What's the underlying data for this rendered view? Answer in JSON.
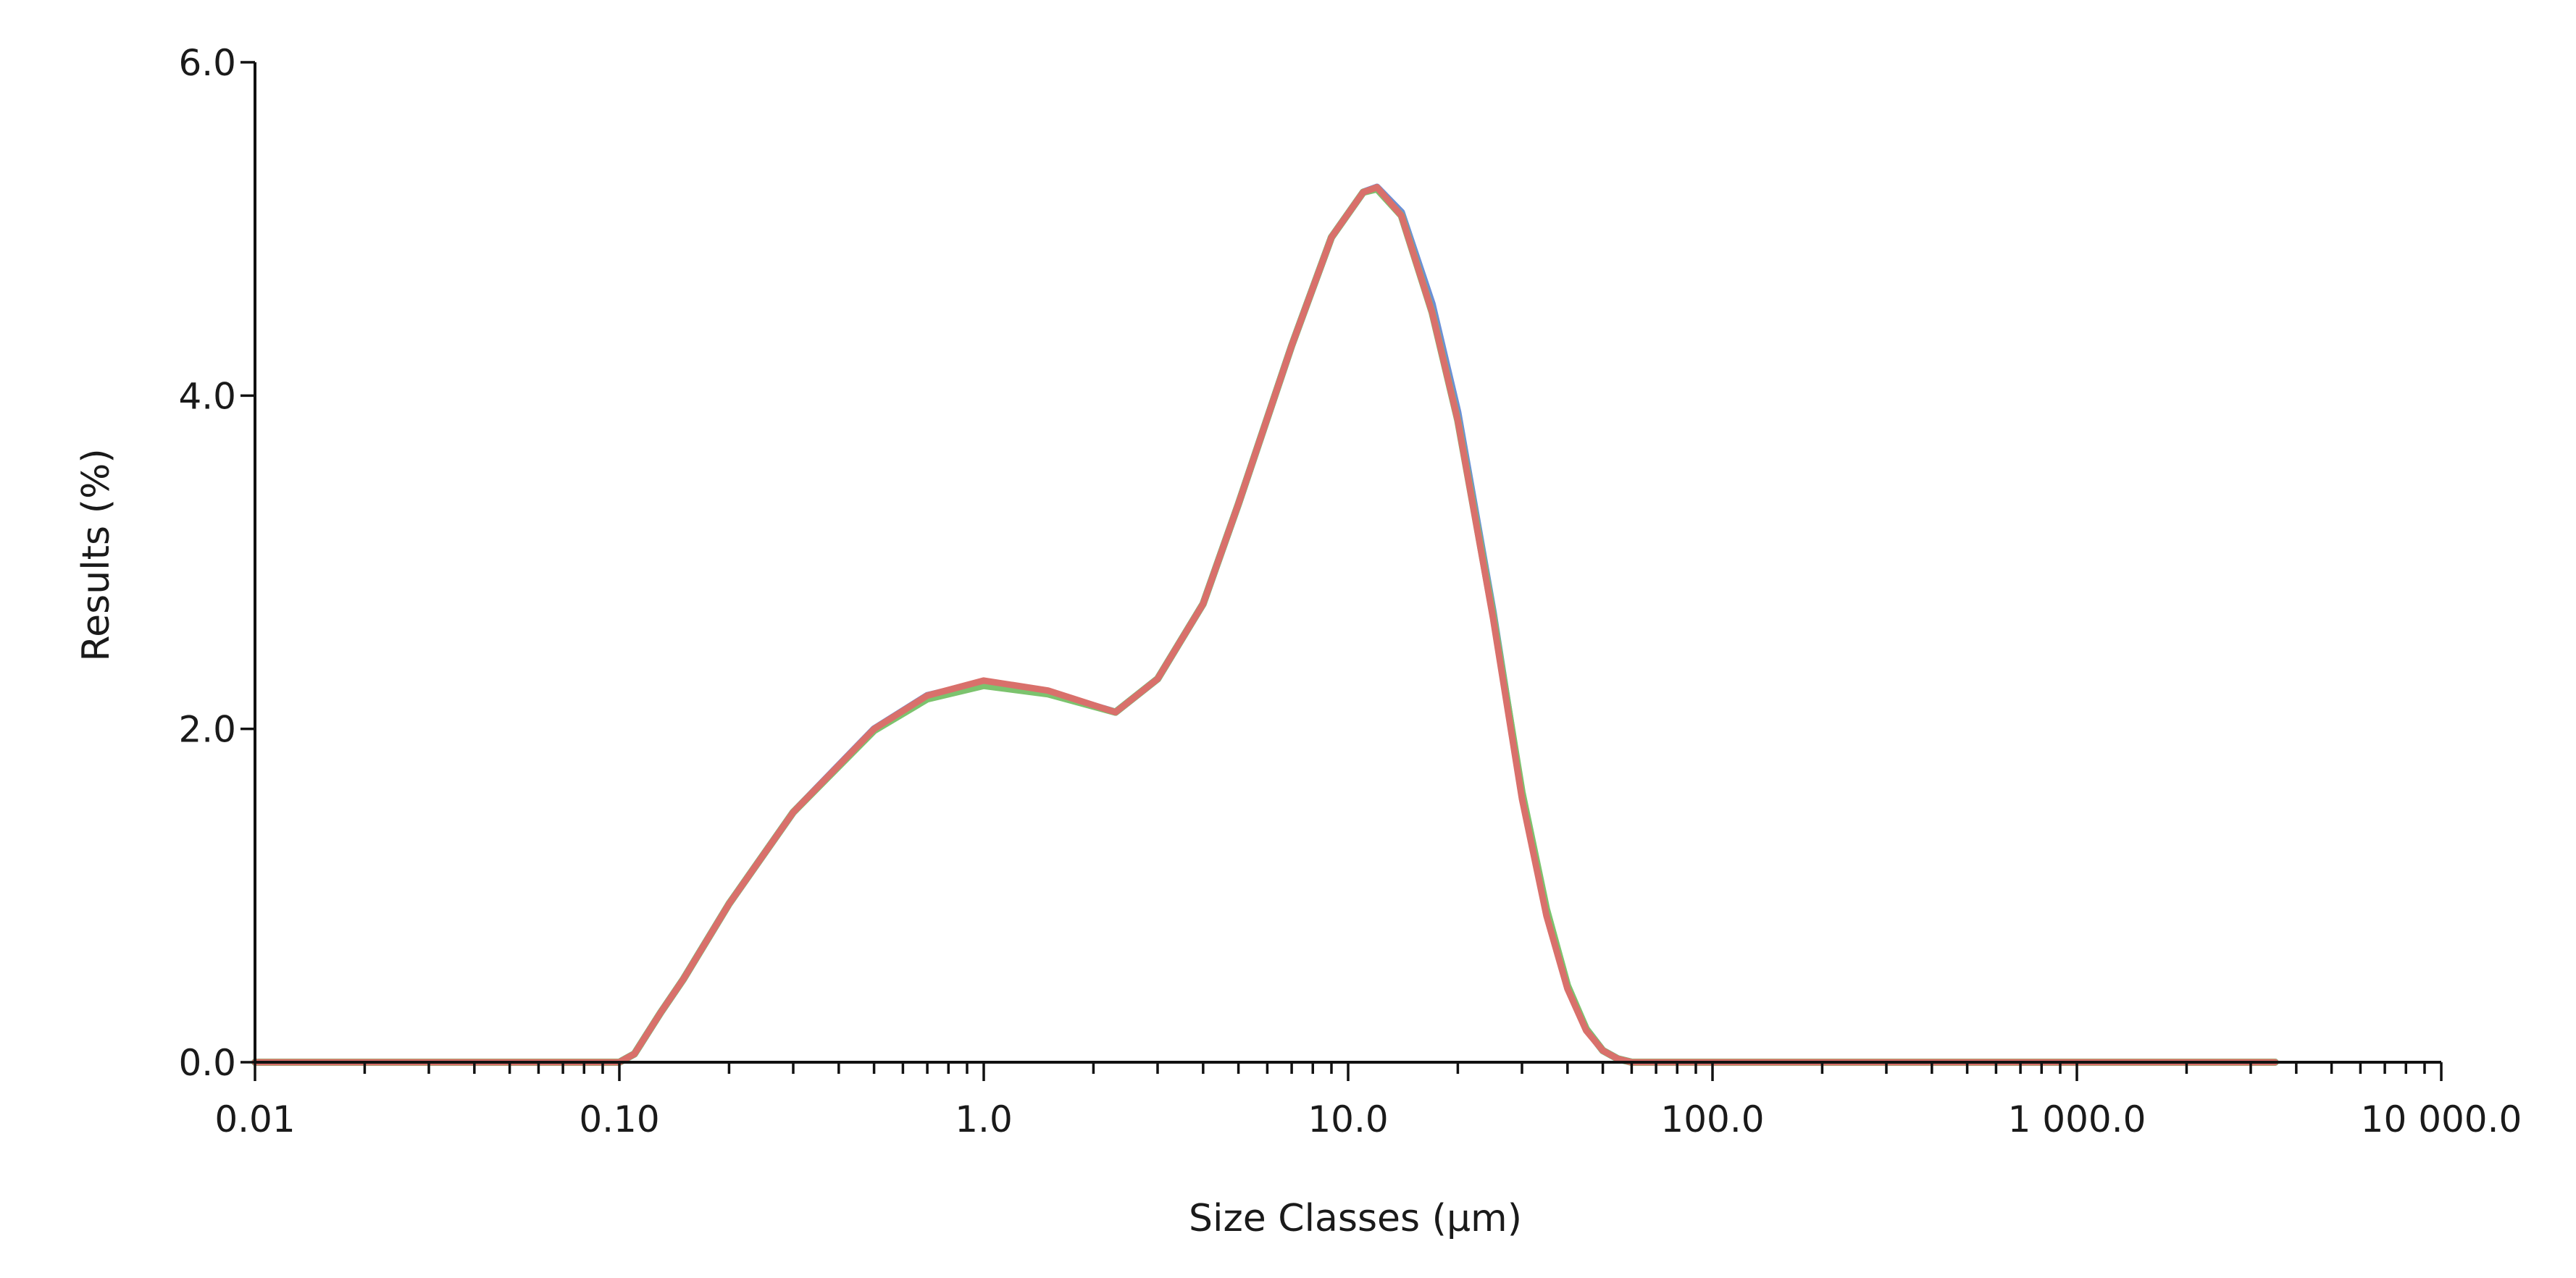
{
  "chart_data": {
    "type": "line",
    "title": "",
    "xlabel": "Size Classes (μm)",
    "ylabel": "Results (%)",
    "x_scale": "log",
    "xlim": [
      0.01,
      10000
    ],
    "ylim": [
      0,
      6
    ],
    "x_ticks": [
      0.01,
      0.1,
      1,
      10,
      100,
      1000,
      10000
    ],
    "x_tick_labels": [
      "0.01",
      "0.10",
      "1.0",
      "10.0",
      "100.0",
      "1 000.0",
      "10 000.0"
    ],
    "y_ticks": [
      0,
      2,
      4,
      6
    ],
    "y_tick_labels": [
      "0.0",
      "2.0",
      "4.0",
      "6.0"
    ],
    "grid": false,
    "legend": "none",
    "series": [
      {
        "color": "#6b8fd6",
        "x": [
          0.01,
          0.1,
          0.11,
          0.13,
          0.15,
          0.2,
          0.3,
          0.5,
          0.7,
          1.0,
          1.5,
          2.3,
          3.0,
          4.0,
          5.0,
          7.0,
          9.0,
          11.0,
          12.0,
          14.0,
          17.0,
          20.0,
          25.0,
          30.0,
          35.0,
          40.0,
          45.0,
          50.0,
          55.0,
          60.0,
          100.0,
          1000.0,
          3500.0
        ],
        "y": [
          0.0,
          0.0,
          0.05,
          0.3,
          0.5,
          0.95,
          1.5,
          2.0,
          2.2,
          2.28,
          2.22,
          2.1,
          2.3,
          2.75,
          3.35,
          4.3,
          4.95,
          5.22,
          5.25,
          5.1,
          4.55,
          3.9,
          2.7,
          1.6,
          0.9,
          0.45,
          0.2,
          0.07,
          0.02,
          0.0,
          0.0,
          0.0,
          0.0
        ]
      },
      {
        "color": "#7cc36e",
        "x": [
          0.01,
          0.1,
          0.11,
          0.13,
          0.15,
          0.2,
          0.3,
          0.5,
          0.7,
          1.0,
          1.5,
          2.3,
          3.0,
          4.0,
          5.0,
          7.0,
          9.0,
          11.0,
          12.0,
          14.0,
          17.0,
          20.0,
          25.0,
          30.0,
          35.0,
          40.0,
          45.0,
          50.0,
          55.0,
          60.0,
          100.0,
          1000.0,
          3500.0
        ],
        "y": [
          0.0,
          0.0,
          0.05,
          0.3,
          0.5,
          0.95,
          1.5,
          1.99,
          2.18,
          2.26,
          2.21,
          2.1,
          2.3,
          2.75,
          3.35,
          4.3,
          4.95,
          5.22,
          5.24,
          5.08,
          4.5,
          3.85,
          2.68,
          1.62,
          0.92,
          0.46,
          0.2,
          0.07,
          0.02,
          0.0,
          0.0,
          0.0,
          0.0
        ]
      },
      {
        "color": "#d9706b",
        "x": [
          0.01,
          0.1,
          0.11,
          0.13,
          0.15,
          0.2,
          0.3,
          0.5,
          0.7,
          1.0,
          1.5,
          2.3,
          3.0,
          4.0,
          5.0,
          7.0,
          9.0,
          11.0,
          12.0,
          14.0,
          17.0,
          20.0,
          25.0,
          30.0,
          35.0,
          40.0,
          45.0,
          50.0,
          55.0,
          60.0,
          100.0,
          1000.0,
          3500.0
        ],
        "y": [
          0.0,
          0.0,
          0.05,
          0.3,
          0.5,
          0.95,
          1.5,
          2.0,
          2.2,
          2.29,
          2.23,
          2.1,
          2.3,
          2.75,
          3.35,
          4.3,
          4.95,
          5.22,
          5.25,
          5.08,
          4.5,
          3.85,
          2.66,
          1.58,
          0.88,
          0.44,
          0.19,
          0.07,
          0.02,
          0.0,
          0.0,
          0.0,
          0.0
        ]
      }
    ]
  }
}
